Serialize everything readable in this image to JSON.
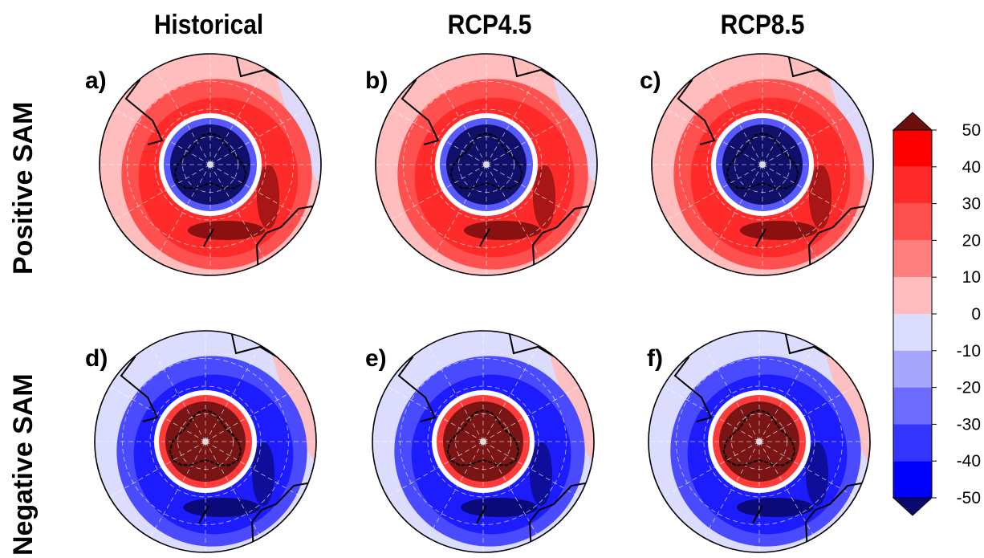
{
  "columns": [
    "Historical",
    "RCP4.5",
    "RCP8.5"
  ],
  "rows": [
    "Positive SAM",
    "Negative SAM"
  ],
  "panels": [
    {
      "label": "a)",
      "row": 0,
      "col": 0
    },
    {
      "label": "b)",
      "row": 0,
      "col": 1
    },
    {
      "label": "c)",
      "row": 0,
      "col": 2
    },
    {
      "label": "d)",
      "row": 1,
      "col": 0
    },
    {
      "label": "e)",
      "row": 1,
      "col": 1
    },
    {
      "label": "f)",
      "row": 1,
      "col": 2
    }
  ],
  "colorbar": {
    "ticks": [
      "50",
      "40",
      "30",
      "20",
      "10",
      "0",
      "-10",
      "-20",
      "-30",
      "-40",
      "-50"
    ],
    "colors_top_to_bottom": [
      "#6b0f0f",
      "#ff0000",
      "#ff2a2a",
      "#ff5050",
      "#ff7f7f",
      "#ffbdbd",
      "#dcdcff",
      "#a6a6ff",
      "#6b6bff",
      "#3434ff",
      "#0000ff",
      "#0a0a6e"
    ]
  },
  "colors": {
    "positive": {
      "center": "#10106b",
      "ring_edge": "#5858ff",
      "gap": "#ffffff",
      "inner_ring": "#ff2a2a",
      "mid": "#ff5050",
      "outer": "#ffbdbd",
      "edge_patch": "#dcdcff",
      "jet_core": "#8b1010"
    },
    "negative": {
      "center": "#7a1515",
      "ring_edge": "#ff3a3a",
      "gap": "#ffffff",
      "inner_ring": "#1c1cff",
      "mid": "#4a4aff",
      "outer": "#dcdcff",
      "edge_patch": "#ffbdbd",
      "jet_core": "#0a0a7a"
    }
  }
}
